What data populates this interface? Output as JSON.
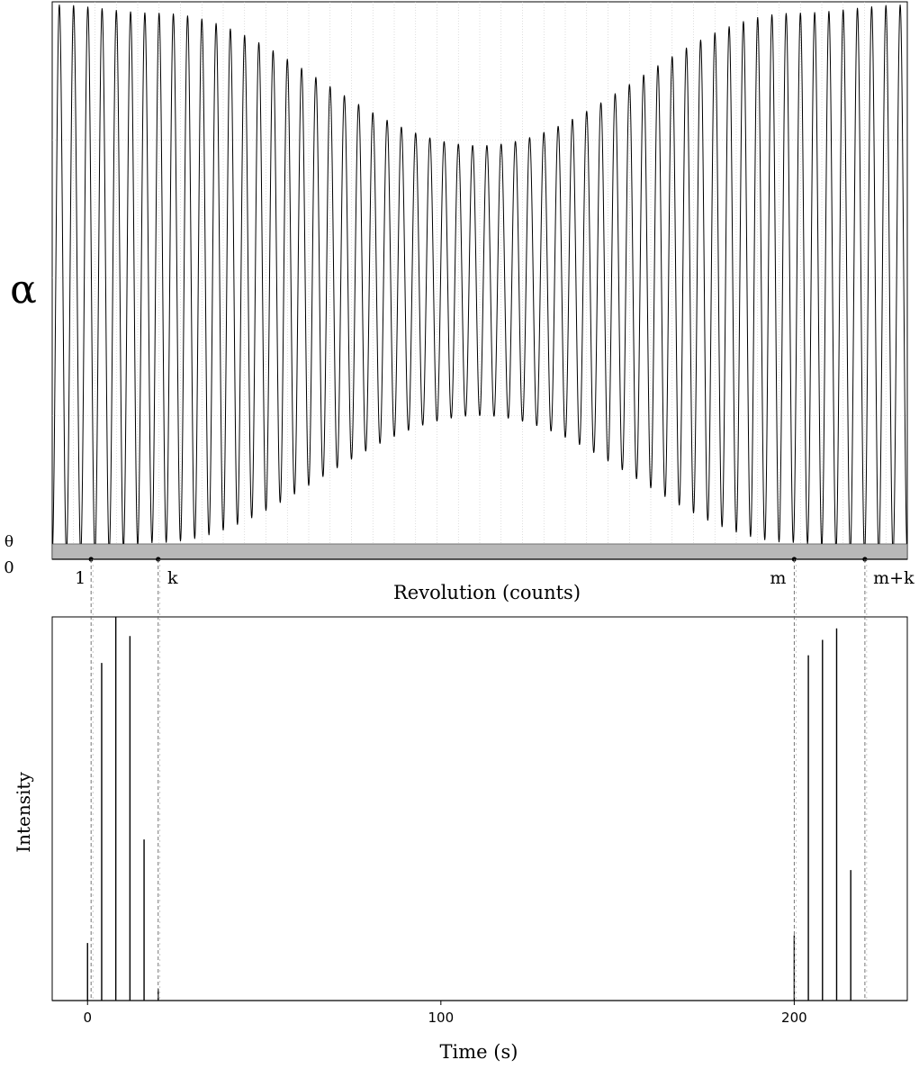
{
  "chart_data": [
    {
      "type": "line",
      "panel": "top",
      "ylabel": "α",
      "xlabel": "Revolution (counts)",
      "y_tick_labels": [
        "0",
        "θ"
      ],
      "x_markers": [
        "1",
        "k",
        "m",
        "m+k"
      ],
      "x_marker_values": [
        1,
        20,
        200,
        220
      ],
      "xlim": [
        -10,
        232
      ],
      "ylim": [
        0,
        1
      ],
      "threshold": 0.018,
      "grid": true,
      "legend": "none",
      "series": [
        {
          "cycles": 60,
          "min_envelope": {
            "x": [
              -10,
              1,
              20,
              111,
              200,
              220,
              232
            ],
            "y": [
              0.0,
              0.0,
              0.02,
              0.25,
              0.02,
              0.0,
              0.0
            ]
          },
          "max_envelope": {
            "x": [
              -10,
              20,
              111,
              200,
              232
            ],
            "y": [
              0.995,
              0.98,
              0.74,
              0.98,
              0.995
            ]
          }
        }
      ]
    },
    {
      "type": "bar",
      "panel": "bottom",
      "ylabel": "Intensity",
      "xlabel": "Time (s)",
      "x_tick_labels": [
        "0",
        "100",
        "200"
      ],
      "x_tick_values": [
        0,
        100,
        200
      ],
      "xlim": [
        -10,
        232
      ],
      "ylim": [
        0,
        1
      ],
      "grid": false,
      "legend": "none",
      "x": [
        0,
        4,
        8,
        12,
        16,
        20,
        200,
        204,
        208,
        212,
        216
      ],
      "values": [
        0.15,
        0.88,
        1.0,
        0.95,
        0.42,
        0.03,
        0.17,
        0.9,
        0.94,
        0.97,
        0.34
      ]
    }
  ]
}
